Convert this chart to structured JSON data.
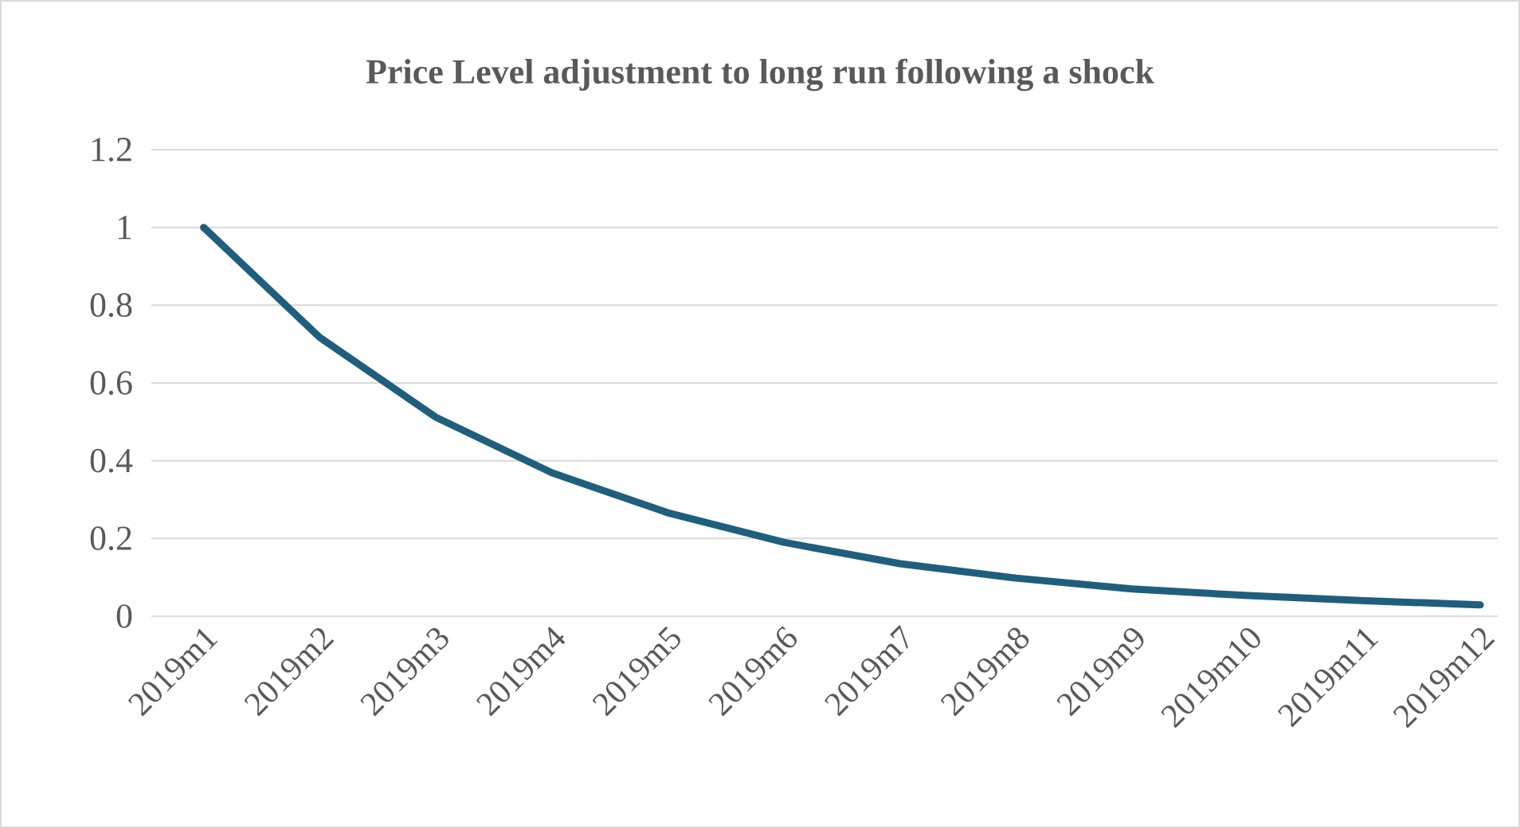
{
  "chart_data": {
    "type": "line",
    "title": "Price Level adjustment to long run following a shock",
    "categories": [
      "2019m1",
      "2019m2",
      "2019m3",
      "2019m4",
      "2019m5",
      "2019m6",
      "2019m7",
      "2019m8",
      "2019m9",
      "2019m10",
      "2019m11",
      "2019m12"
    ],
    "values": [
      1,
      0.717,
      0.512,
      0.369,
      0.266,
      0.19,
      0.135,
      0.098,
      0.07,
      0.053,
      0.04,
      0.029
    ],
    "color": "#1f5f7d",
    "ylim": [
      0,
      1.2
    ],
    "yticks": [
      0,
      0.2,
      0.4,
      0.6,
      0.8,
      1,
      1.2
    ],
    "grid": "y"
  }
}
